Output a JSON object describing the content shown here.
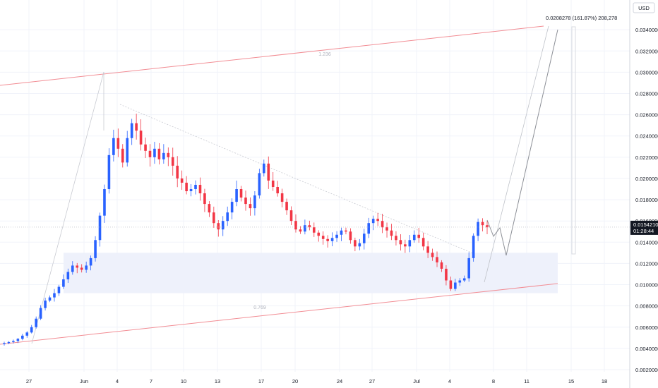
{
  "chart_data": {
    "type": "candlestick",
    "currency_label": "USD",
    "yaxis_ticks": [
      "0.0020000",
      "0.0040000",
      "0.0060000",
      "0.0080000",
      "0.0100000",
      "0.0120000",
      "0.0140000",
      "0.0160000",
      "0.0180000",
      "0.0200000",
      "0.0220000",
      "0.0240000",
      "0.0260000",
      "0.0280000",
      "0.0300000",
      "0.0320000",
      "0.0340000"
    ],
    "ylim": [
      0.0018,
      0.0368
    ],
    "xaxis_ticks": [
      "27",
      "Jun",
      "4",
      "7",
      "10",
      "13",
      "17",
      "20",
      "24",
      "27",
      "Jul",
      "4",
      "8",
      "11",
      "15",
      "18"
    ],
    "current_price": "0.0154210",
    "countdown": "01:28:44",
    "target_annotation": "0.0208278 (161.87%) 208,278",
    "fib_labels": [
      "1.236",
      "0.769"
    ],
    "colors": {
      "up": "#2962ff",
      "down": "#f23645",
      "channel": "#f28d94",
      "zone": "#eef1fb",
      "grid": "#f0f3fa",
      "price_tag": "#131722"
    },
    "close_series": [
      0.0045,
      0.0046,
      0.0047,
      0.0049,
      0.0052,
      0.0055,
      0.006,
      0.0068,
      0.0078,
      0.0085,
      0.0088,
      0.0092,
      0.0098,
      0.0105,
      0.0112,
      0.0118,
      0.0116,
      0.0114,
      0.0118,
      0.0125,
      0.0142,
      0.0165,
      0.019,
      0.0222,
      0.0238,
      0.0228,
      0.0215,
      0.0238,
      0.0252,
      0.0245,
      0.0232,
      0.0226,
      0.022,
      0.0228,
      0.0218,
      0.0224,
      0.022,
      0.0212,
      0.02,
      0.0196,
      0.0188,
      0.019,
      0.0194,
      0.0186,
      0.0176,
      0.0168,
      0.0158,
      0.0152,
      0.016,
      0.0168,
      0.0178,
      0.019,
      0.0182,
      0.0176,
      0.0172,
      0.0184,
      0.0205,
      0.0214,
      0.0198,
      0.0192,
      0.0186,
      0.0178,
      0.017,
      0.016,
      0.0152,
      0.015,
      0.0156,
      0.0154,
      0.0149,
      0.0146,
      0.0143,
      0.0141,
      0.0144,
      0.0147,
      0.0151,
      0.015,
      0.0142,
      0.0136,
      0.0139,
      0.0148,
      0.0158,
      0.0162,
      0.016,
      0.0154,
      0.0151,
      0.0146,
      0.0142,
      0.0138,
      0.0136,
      0.0142,
      0.0147,
      0.0144,
      0.0136,
      0.013,
      0.0126,
      0.0121,
      0.0115,
      0.0104,
      0.0096,
      0.0102,
      0.0104,
      0.0106,
      0.0125,
      0.0146,
      0.0159,
      0.0156,
      0.0154
    ]
  }
}
